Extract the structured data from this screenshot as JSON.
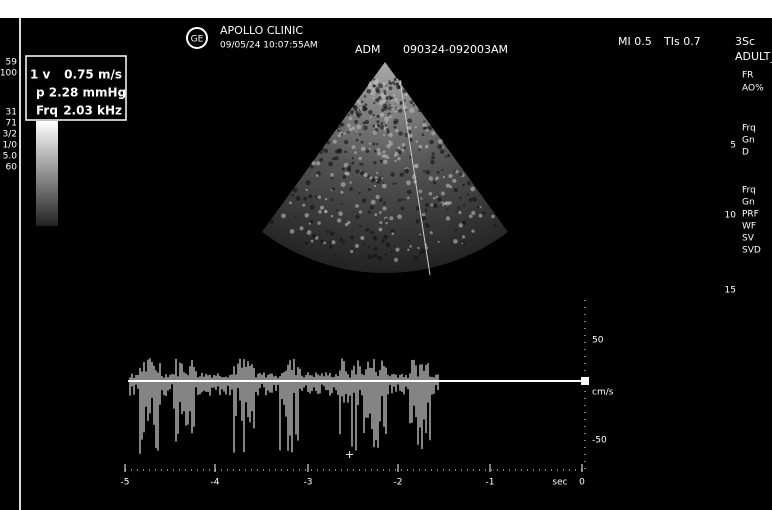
{
  "header": {
    "clinic": "APOLLO CLINIC",
    "datetime": "09/05/24 10:07:55AM",
    "operator": "ADM",
    "exam_id": "090324-092003AM",
    "mi": "MI 0.5",
    "tis": "TIs 0.7",
    "probe": "3Sc",
    "preset": "ADULT_S"
  },
  "measurement": {
    "velocity_label": "1 v",
    "velocity": "0.75 m/s",
    "pressure": "p 2.28 mmHg",
    "frequency_label": "Frq",
    "frequency": "2.03 kHz"
  },
  "left_scale": [
    "59",
    "100",
    "31",
    "71",
    "3/2",
    "1/0",
    "5.0",
    "60"
  ],
  "right_menu": [
    "FR",
    "AO%",
    "Frq",
    "Gn",
    "D",
    "Frq",
    "Gn",
    "PRF",
    "WF",
    "SV",
    "SVD"
  ],
  "depth_marks": [
    "5",
    "10",
    "15"
  ],
  "velocity_scale": {
    "top": "50",
    "unit": "cm/s",
    "bottom": "-50"
  },
  "time_axis": {
    "labels": [
      "-5",
      "-4",
      "-3",
      "-2",
      "-1",
      "0"
    ],
    "unit": "sec"
  }
}
